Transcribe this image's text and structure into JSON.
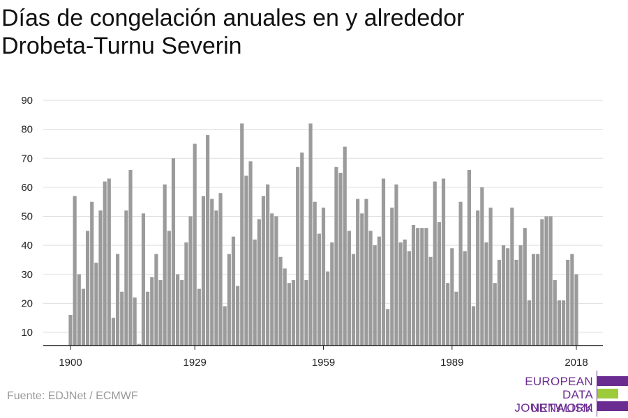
{
  "title_line1": "Días de congelación anuales en y alrededor",
  "title_line2": "Drobeta-Turnu Severin",
  "source": "Fuente: EDJNet / ECMWF",
  "logo": {
    "line1": "EUROPEAN",
    "line2": "DATA JOURNALISM",
    "line3": "NETWORK",
    "text_color": "#6b2c91",
    "bar_purple": "#6b2c91",
    "bar_green": "#9ccc3c"
  },
  "chart_data": {
    "type": "bar",
    "title": "Días de congelación anuales en y alrededor Drobeta-Turnu Severin",
    "xlabel": "",
    "ylabel": "",
    "x_start": 1900,
    "x_end": 2018,
    "x_ticks": [
      "1900",
      "1929",
      "1959",
      "1989",
      "2018"
    ],
    "y_ticks": [
      "10",
      "20",
      "30",
      "40",
      "50",
      "60",
      "70",
      "80",
      "90"
    ],
    "ylim": [
      5,
      90
    ],
    "grid": true,
    "bar_color": "#9b9b9b",
    "values": [
      16,
      57,
      30,
      25,
      45,
      55,
      34,
      52,
      62,
      63,
      15,
      37,
      24,
      52,
      66,
      22,
      6,
      51,
      24,
      29,
      37,
      28,
      61,
      45,
      70,
      30,
      28,
      41,
      50,
      75,
      25,
      57,
      78,
      56,
      52,
      58,
      19,
      37,
      43,
      26,
      82,
      64,
      69,
      42,
      49,
      57,
      61,
      51,
      50,
      36,
      32,
      27,
      28,
      67,
      72,
      28,
      82,
      55,
      44,
      53,
      31,
      41,
      67,
      65,
      74,
      45,
      37,
      56,
      51,
      56,
      45,
      40,
      43,
      63,
      18,
      53,
      61,
      41,
      42,
      38,
      47,
      46,
      46,
      46,
      36,
      62,
      48,
      63,
      27,
      39,
      24,
      55,
      38,
      66,
      19,
      52,
      60,
      41,
      53,
      27,
      35,
      40,
      39,
      53,
      35,
      40,
      46,
      21,
      37,
      37,
      49,
      50,
      50,
      28,
      21,
      21,
      35,
      37,
      30
    ]
  }
}
